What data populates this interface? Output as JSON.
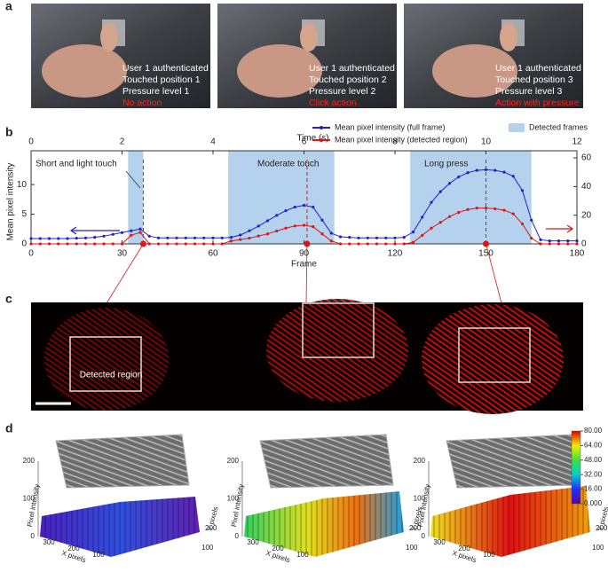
{
  "panel_labels": [
    "a",
    "b",
    "c",
    "d"
  ],
  "photos": [
    {
      "lines": [
        "User 1 authenticated",
        "Touched position 1",
        "Pressure level 1"
      ],
      "action": "No action"
    },
    {
      "lines": [
        "User 1 authenticated",
        "Touched position 2",
        "Pressure level 2"
      ],
      "action": "Click action"
    },
    {
      "lines": [
        "User 1 authenticated",
        "Touched position 3",
        "Pressure level 3"
      ],
      "action": "Action with pressure"
    }
  ],
  "chart_data": {
    "type": "line",
    "x_label": "Frame",
    "x2_label": "Time (s)",
    "y_label": "Mean pixel intensity",
    "annotations": [
      "Short and light touch",
      "Moderate touch",
      "Long press"
    ],
    "x": [
      0,
      3,
      6,
      9,
      12,
      15,
      18,
      21,
      24,
      27,
      30,
      33,
      36,
      39,
      42,
      45,
      48,
      51,
      54,
      57,
      60,
      63,
      66,
      69,
      72,
      75,
      78,
      81,
      84,
      87,
      90,
      93,
      96,
      99,
      102,
      105,
      108,
      111,
      114,
      117,
      120,
      123,
      126,
      129,
      132,
      135,
      138,
      141,
      144,
      147,
      150,
      153,
      156,
      159,
      162,
      165,
      168,
      171,
      174,
      177,
      180
    ],
    "xlim": [
      0,
      180
    ],
    "xticks": [
      0,
      30,
      60,
      90,
      120,
      150,
      180
    ],
    "x2lim": [
      0,
      12
    ],
    "x2ticks": [
      0,
      2,
      4,
      6,
      8,
      10,
      12
    ],
    "ylim": [
      0,
      15.7
    ],
    "yticks": [
      0,
      5,
      10
    ],
    "y2lim": [
      0,
      65
    ],
    "y2ticks": [
      0,
      20,
      40,
      60
    ],
    "series": [
      {
        "name": "Mean pixel intensity (full frame)",
        "color": "#1f1fd6",
        "values": [
          0.9,
          0.9,
          0.9,
          0.9,
          0.9,
          0.95,
          1.0,
          1.1,
          1.3,
          1.6,
          1.9,
          2.2,
          2.5,
          1.3,
          1.0,
          1.0,
          1.0,
          1.0,
          1.0,
          1.0,
          1.0,
          1.0,
          1.1,
          1.5,
          2.2,
          3.0,
          3.9,
          4.8,
          5.6,
          6.2,
          6.5,
          6.2,
          4.0,
          1.8,
          1.2,
          1.1,
          1.0,
          1.0,
          1.0,
          1.0,
          1.0,
          1.1,
          2.0,
          4.5,
          7.0,
          8.8,
          10.2,
          11.3,
          12.0,
          12.4,
          12.5,
          12.4,
          12.1,
          11.4,
          9.0,
          4.0,
          0.7,
          0.5,
          0.5,
          0.5,
          0.5
        ]
      },
      {
        "name": "Mean pixel intensity (detected region)",
        "color": "#e01414",
        "axis": "y2",
        "values": [
          0,
          0,
          0,
          0,
          0,
          0,
          0,
          0,
          0,
          0,
          0,
          6,
          8,
          0,
          0,
          0,
          0,
          0,
          0,
          0,
          0,
          0,
          2,
          3,
          4,
          5.5,
          7,
          9,
          11,
          12.5,
          13,
          12,
          7,
          2,
          0,
          0,
          0,
          0,
          0,
          0,
          0,
          0,
          1,
          6,
          11,
          15,
          19,
          22,
          24,
          25,
          25,
          24.5,
          23.5,
          21,
          14,
          4,
          0,
          0,
          0,
          0,
          0
        ]
      }
    ],
    "highlights": {
      "name": "Detected frames",
      "color": "#b4d2ee",
      "ranges": [
        [
          32,
          37
        ],
        [
          65,
          100
        ],
        [
          125,
          165
        ]
      ]
    },
    "marked_frames": [
      37,
      91,
      150
    ]
  },
  "fingerprint_image": {
    "region_label": "Detected region"
  },
  "surface_plots": {
    "z_label": "Pixel intensity",
    "x_label": "X pixels",
    "y_label": "Y pixels",
    "zlim": [
      0,
      200
    ],
    "z_ticks": [
      0,
      100,
      200
    ],
    "x_ticks": [
      300,
      200,
      100
    ],
    "y_ticks": [
      100,
      200
    ],
    "colorbar": {
      "lim": [
        0,
        80
      ],
      "ticks": [
        {
          "value": 80,
          "label": "80.00"
        },
        {
          "value": 64,
          "label": "64.00"
        },
        {
          "value": 48,
          "label": "48.00"
        },
        {
          "value": 32,
          "label": "32.00"
        },
        {
          "value": 16,
          "label": "16.00"
        },
        {
          "value": 0,
          "label": "0.000"
        }
      ]
    }
  }
}
